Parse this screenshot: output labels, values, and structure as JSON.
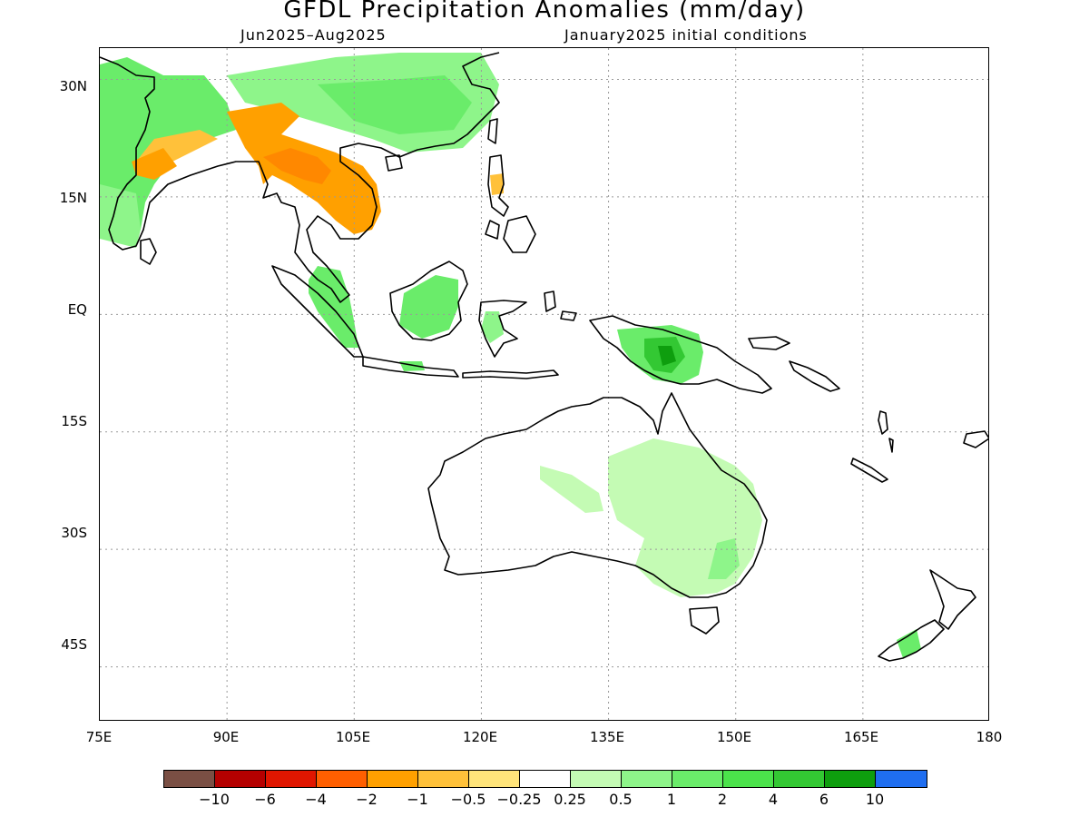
{
  "title": "GFDL Precipitation Anomalies (mm/day)",
  "subtitle_left": "Jun2025–Aug2025",
  "subtitle_right": "January2025 initial conditions",
  "map": {
    "lon_range": [
      75,
      180
    ],
    "lat_range": [
      -52,
      34
    ],
    "lat_labels": [
      "30N",
      "15N",
      "EQ",
      "15S",
      "30S",
      "45S"
    ],
    "lat_values": [
      30,
      15,
      0,
      -15,
      -30,
      -45
    ],
    "lon_labels": [
      "75E",
      "90E",
      "105E",
      "120E",
      "135E",
      "150E",
      "165E",
      "180"
    ],
    "lon_values": [
      75,
      90,
      105,
      120,
      135,
      150,
      165,
      180
    ]
  },
  "colorbar": {
    "colors": [
      "#7a4f44",
      "#b50000",
      "#e01600",
      "#ff5f00",
      "#ffa000",
      "#ffc13a",
      "#ffe47a",
      "#ffffff",
      "#c4fbb4",
      "#8ef58a",
      "#6aec6a",
      "#4be24b",
      "#33c833",
      "#0e9e0e",
      "#1f6ef0"
    ],
    "labels": [
      "−10",
      "−6",
      "−4",
      "−2",
      "−1",
      "−0.5",
      "−0.25",
      "0.25",
      "0.5",
      "1",
      "2",
      "4",
      "6",
      "10"
    ]
  },
  "colors": {
    "land_outline": "#000000",
    "grid": "#9a9a9a"
  }
}
